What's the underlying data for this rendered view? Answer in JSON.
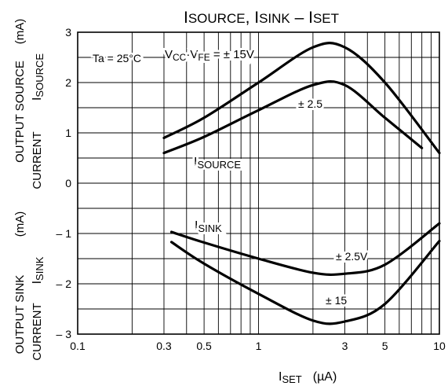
{
  "chart_data": {
    "type": "line",
    "title": {
      "main": "I",
      "sub1": "SOURCE",
      "comma": ", I",
      "sub2": "SINK",
      "dash": " – I",
      "sub3": "SET"
    },
    "condition": "Ta = 25°C",
    "x_axis": {
      "scale": "log",
      "range": [
        0.1,
        10
      ],
      "ticks": [
        0.1,
        0.3,
        0.5,
        1,
        3,
        5,
        10
      ],
      "tick_labels": [
        "0.1",
        "0.3",
        "0.5",
        "1",
        "3",
        "5",
        "10"
      ],
      "label_main": "I",
      "label_sub": "SET",
      "label_unit": "(µA)"
    },
    "y_axis": {
      "range": [
        -3,
        3
      ],
      "ticks": [
        3,
        2,
        1,
        0,
        -1,
        -2,
        -3
      ],
      "tick_labels": [
        "3",
        "2",
        "1",
        "0",
        "– 1",
        "– 2",
        "– 3"
      ],
      "upper_label": {
        "line1": "OUTPUT SOURCE",
        "line2": "CURRENT",
        "sub_main": "I",
        "sub_sub": "SOURCE",
        "unit": "(mA)"
      },
      "lower_label": {
        "line1": "OUTPUT SINK",
        "line2": "CURRENT",
        "sub_main": "I",
        "sub_sub": "SINK",
        "unit": "(mA)"
      }
    },
    "grid": true,
    "series": [
      {
        "name": "VCC·VFE = ± 15V",
        "points": [
          [
            0.3,
            0.9
          ],
          [
            0.5,
            1.3
          ],
          [
            1,
            2.0
          ],
          [
            2,
            2.7
          ],
          [
            3,
            2.7
          ],
          [
            5,
            2.0
          ],
          [
            10,
            0.6
          ]
        ]
      },
      {
        "name": "± 2.5",
        "points": [
          [
            0.3,
            0.6
          ],
          [
            0.5,
            0.92
          ],
          [
            1,
            1.45
          ],
          [
            2,
            1.95
          ],
          [
            3,
            1.95
          ],
          [
            5,
            1.3
          ],
          [
            8,
            0.7
          ]
        ]
      },
      {
        "name": "± 2.5V",
        "points": [
          [
            0.33,
            -0.97
          ],
          [
            0.5,
            -1.18
          ],
          [
            1,
            -1.5
          ],
          [
            2,
            -1.78
          ],
          [
            3,
            -1.8
          ],
          [
            5,
            -1.62
          ],
          [
            10,
            -0.8
          ]
        ]
      },
      {
        "name": "± 15",
        "points": [
          [
            0.33,
            -1.17
          ],
          [
            0.5,
            -1.6
          ],
          [
            1,
            -2.2
          ],
          [
            2,
            -2.73
          ],
          [
            3,
            -2.75
          ],
          [
            5,
            -2.4
          ],
          [
            10,
            -1.15
          ]
        ]
      }
    ],
    "labels": {
      "vcc": {
        "v": "V",
        "cc": "CC",
        "dot": "·V",
        "fe": "FE",
        "rest": " = ± 15V"
      },
      "pm25": "± 2.5",
      "isource": {
        "main": "I",
        "sub": "SOURCE"
      },
      "isink": {
        "main": "I",
        "sub": "SINK"
      },
      "pm25v": "± 2.5V",
      "pm15": "± 15"
    }
  }
}
